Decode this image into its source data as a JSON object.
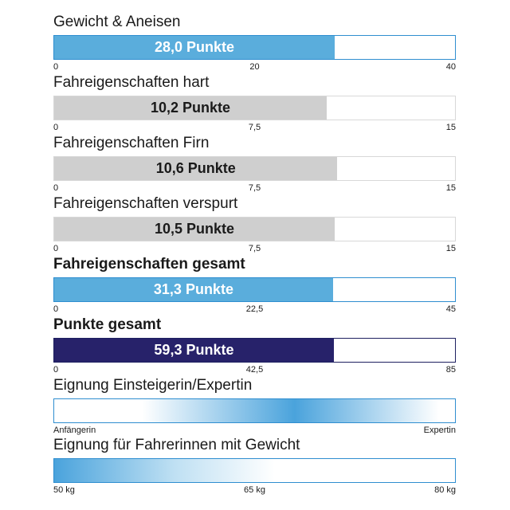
{
  "chart_data": [
    {
      "type": "bar",
      "title": "Gewicht & Aneisen",
      "value": 28.0,
      "label": "28,0 Punkte",
      "xlim": [
        0,
        40
      ],
      "ticks": [
        "0",
        "20",
        "40"
      ],
      "color": "#5aaddc"
    },
    {
      "type": "bar",
      "title": "Fahreigenschaften hart",
      "value": 10.2,
      "label": "10,2 Punkte",
      "xlim": [
        0,
        15
      ],
      "ticks": [
        "0",
        "7,5",
        "15"
      ],
      "color": "#cfcfcf"
    },
    {
      "type": "bar",
      "title": "Fahreigenschaften Firn",
      "value": 10.6,
      "label": "10,6 Punkte",
      "xlim": [
        0,
        15
      ],
      "ticks": [
        "0",
        "7,5",
        "15"
      ],
      "color": "#cfcfcf"
    },
    {
      "type": "bar",
      "title": "Fahreigenschaften verspurt",
      "value": 10.5,
      "label": "10,5 Punkte",
      "xlim": [
        0,
        15
      ],
      "ticks": [
        "0",
        "7,5",
        "15"
      ],
      "color": "#cfcfcf"
    },
    {
      "type": "bar",
      "title": "Fahreigenschaften gesamt",
      "value": 31.3,
      "label": "31,3 Punkte",
      "xlim": [
        0,
        45
      ],
      "ticks": [
        "0",
        "22,5",
        "45"
      ],
      "color": "#5aaddc"
    },
    {
      "type": "bar",
      "title": "Punkte gesamt",
      "value": 59.3,
      "label": "59,3 Punkte",
      "xlim": [
        0,
        85
      ],
      "ticks": [
        "0",
        "42,5",
        "85"
      ],
      "color": "#27226a"
    },
    {
      "type": "gradient-scale",
      "title": "Eignung Einsteigerin/Expertin",
      "ticks": [
        "Anfängerin",
        "Expertin"
      ],
      "color": "#4aa3dc"
    },
    {
      "type": "gradient-scale",
      "title": "Eignung für Fahrerinnen mit Gewicht",
      "ticks": [
        "50 kg",
        "65 kg",
        "80 kg"
      ],
      "color": "#4aa3dc"
    }
  ]
}
